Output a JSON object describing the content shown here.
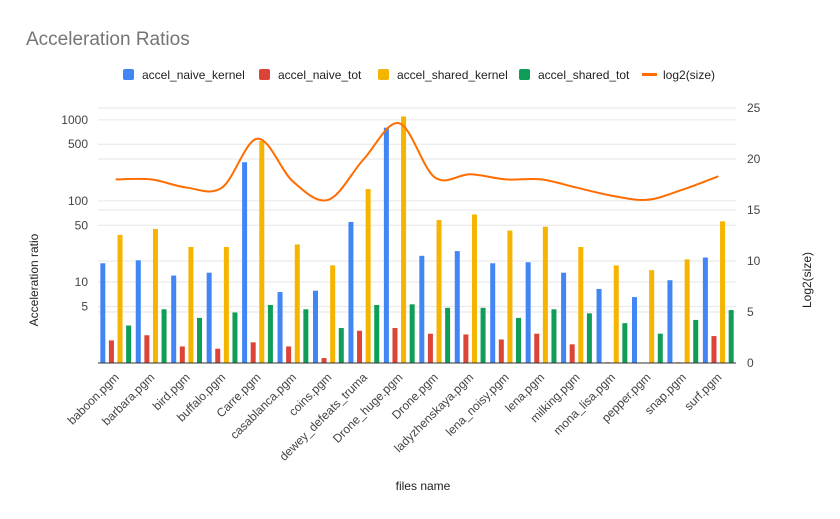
{
  "chart_data": {
    "type": "bar",
    "title": "Acceleration Ratios",
    "xlabel": "files name",
    "ylabel": "Acceleration ratio",
    "y2label": "Log2(size)",
    "y_scale": "log",
    "y_ticks": [
      5,
      10,
      50,
      100,
      500,
      1000
    ],
    "y2_ticks": [
      0,
      5,
      10,
      15,
      20,
      25
    ],
    "ylim": [
      1,
      1400
    ],
    "y2lim": [
      0,
      25
    ],
    "legend_position": "top",
    "grid": true,
    "categories": [
      "baboon.pgm",
      "barbara.pgm",
      "bird.pgm",
      "buffalo.pgm",
      "Carre.pgm",
      "casablanca.pgm",
      "coins.pgm",
      "dewey_defeats_truma",
      "Drone_huge.pgm",
      "Drone.pgm",
      "ladyzhenskaya.pgm",
      "lena_noisy.pgm",
      "lena.pgm",
      "milking.pgm",
      "mona_lisa.pgm",
      "pepper.pgm",
      "snap.pgm",
      "surf.pgm"
    ],
    "series": [
      {
        "name": "accel_naive_kernel",
        "axis": "left",
        "type": "bar",
        "color": "#4285f4",
        "values": [
          17,
          18.5,
          12,
          13,
          300,
          7.5,
          7.8,
          55,
          800,
          21,
          24,
          17,
          17.5,
          13,
          8.2,
          6.5,
          10.5,
          20
        ]
      },
      {
        "name": "accel_naive_tot",
        "axis": "left",
        "type": "bar",
        "color": "#db4437",
        "values": [
          1.9,
          2.2,
          1.6,
          1.5,
          1.8,
          1.6,
          1.15,
          2.5,
          2.7,
          2.3,
          2.25,
          1.95,
          2.3,
          1.7,
          1.02,
          1,
          1.02,
          2.15
        ]
      },
      {
        "name": "accel_shared_kernel",
        "axis": "left",
        "type": "bar",
        "color": "#f4b400",
        "values": [
          38,
          45,
          27,
          27,
          550,
          29,
          16,
          140,
          1100,
          58,
          68,
          43,
          48,
          27,
          16,
          14,
          19,
          56
        ]
      },
      {
        "name": "accel_shared_tot",
        "axis": "left",
        "type": "bar",
        "color": "#0f9d58",
        "values": [
          2.9,
          4.6,
          3.6,
          4.2,
          5.2,
          4.6,
          2.7,
          5.2,
          5.3,
          4.8,
          4.8,
          3.6,
          4.6,
          4.1,
          3.1,
          2.3,
          3.4,
          4.5
        ]
      },
      {
        "name": "log2(size)",
        "axis": "right",
        "type": "line",
        "color": "#ff6d00",
        "values": [
          18,
          18,
          17.2,
          17.2,
          22,
          17.8,
          16,
          20,
          23.5,
          18.2,
          18.5,
          18,
          18,
          17.2,
          16.4,
          16,
          17,
          18.3
        ]
      }
    ]
  }
}
